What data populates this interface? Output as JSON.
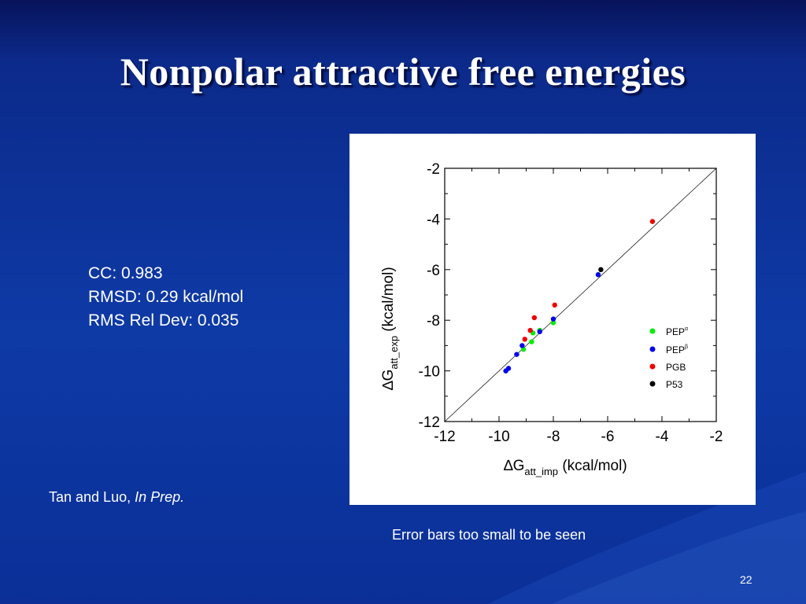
{
  "slide": {
    "title": "Nonpolar attractive free energies",
    "stats": [
      "CC: 0.983",
      "RMSD: 0.29 kcal/mol",
      "RMS Rel Dev: 0.035"
    ],
    "citation_authors": "Tan and Luo, ",
    "citation_status": "In Prep.",
    "note": "Error bars too small to be seen",
    "slide_number": "22"
  },
  "chart_data": {
    "type": "scatter",
    "xlabel_symbol": "∆G",
    "xlabel_sub": "att_imp",
    "xlabel_unit": " (kcal/mol)",
    "ylabel_symbol": "∆G",
    "ylabel_sub": "att_exp",
    "ylabel_unit": " (kcal/mol)",
    "xlim": [
      -12,
      -2
    ],
    "ylim": [
      -12,
      -2
    ],
    "xticks": [
      -12,
      -10,
      -8,
      -6,
      -4,
      -2
    ],
    "yticks": [
      -12,
      -10,
      -8,
      -6,
      -4,
      -2
    ],
    "diagonal": true,
    "legend_position": "bottom-right",
    "series": [
      {
        "name": "PEP",
        "sup": "α",
        "color": "#00ee00",
        "points": [
          [
            -9.1,
            -9.15
          ],
          [
            -8.8,
            -8.85
          ],
          [
            -8.75,
            -8.5
          ],
          [
            -8.5,
            -8.4
          ],
          [
            -8.0,
            -8.1
          ]
        ]
      },
      {
        "name": "PEP",
        "sup": "β",
        "color": "#0000ee",
        "points": [
          [
            -9.75,
            -10.0
          ],
          [
            -9.65,
            -9.9
          ],
          [
            -9.35,
            -9.35
          ],
          [
            -9.15,
            -9.0
          ],
          [
            -8.5,
            -8.45
          ],
          [
            -8.0,
            -7.95
          ],
          [
            -6.35,
            -6.2
          ]
        ]
      },
      {
        "name": "PGB",
        "sup": "",
        "color": "#ee0000",
        "points": [
          [
            -9.05,
            -8.75
          ],
          [
            -8.85,
            -8.4
          ],
          [
            -8.7,
            -7.9
          ],
          [
            -7.95,
            -7.4
          ],
          [
            -4.35,
            -4.1
          ]
        ]
      },
      {
        "name": "P53",
        "sup": "",
        "color": "#000000",
        "points": [
          [
            -6.25,
            -6.0
          ]
        ]
      }
    ]
  }
}
